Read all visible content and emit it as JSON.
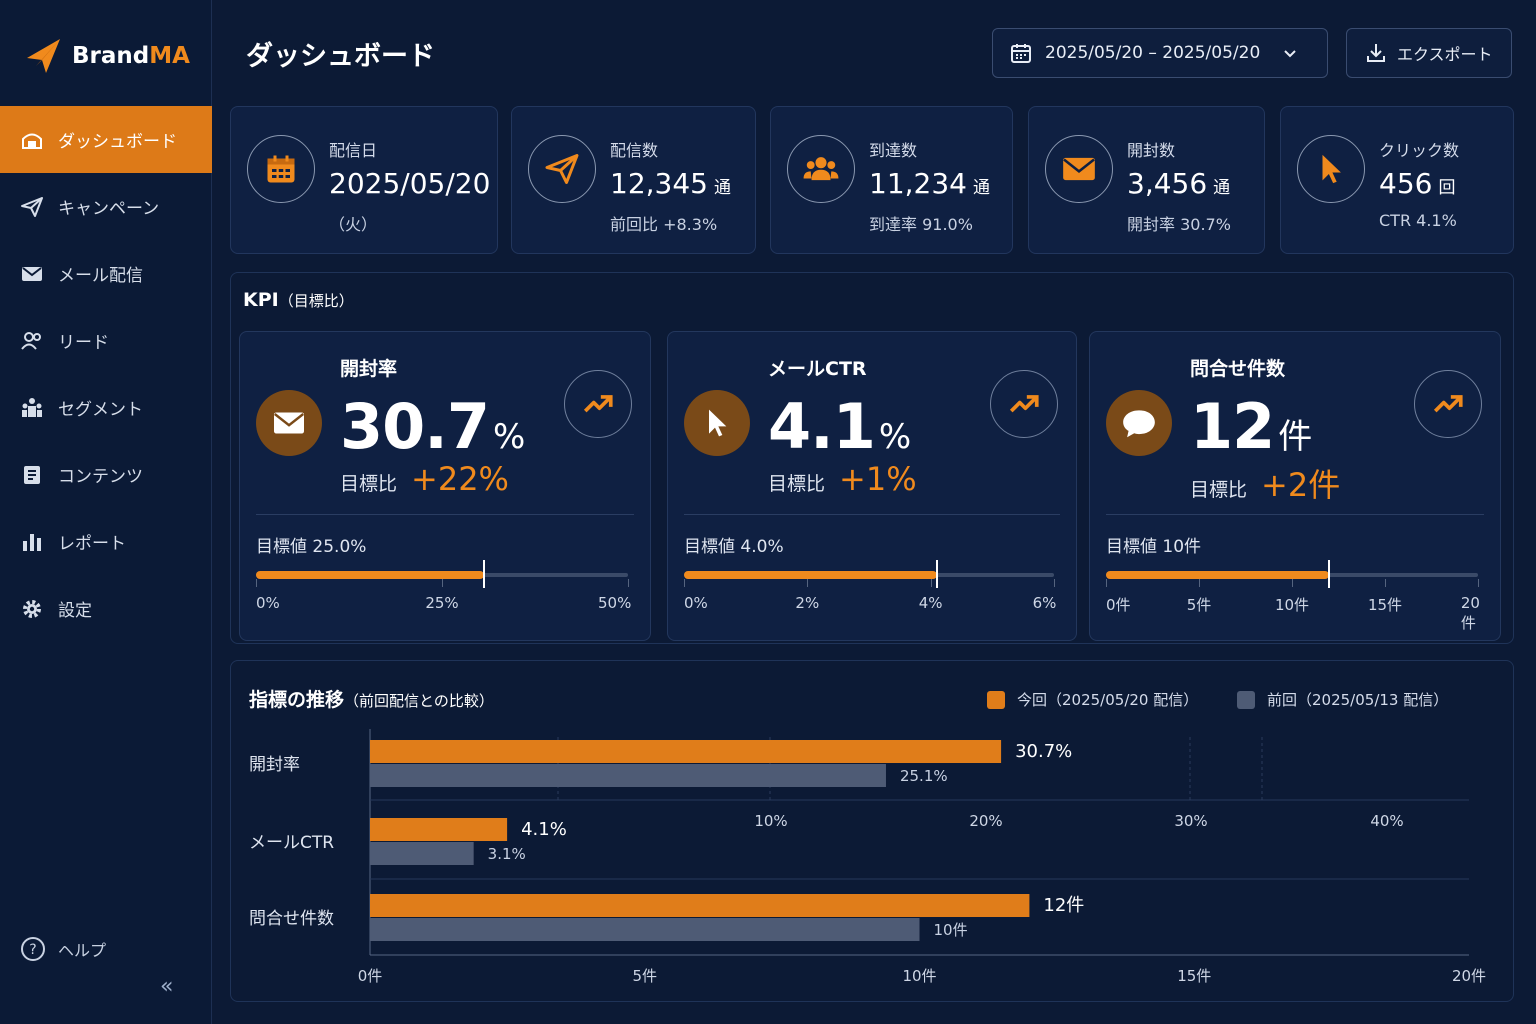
{
  "app": {
    "brand_a": "Brand",
    "brand_b": "MA"
  },
  "sidebar": {
    "items": [
      {
        "label": "ダッシュボード",
        "icon": "dashboard-icon"
      },
      {
        "label": "キャンペーン",
        "icon": "paper-plane-icon"
      },
      {
        "label": "メール配信",
        "icon": "mail-icon"
      },
      {
        "label": "リード",
        "icon": "users-icon"
      },
      {
        "label": "セグメント",
        "icon": "segment-icon"
      },
      {
        "label": "コンテンツ",
        "icon": "document-icon"
      },
      {
        "label": "レポート",
        "icon": "bar-chart-icon"
      },
      {
        "label": "設定",
        "icon": "gear-icon"
      }
    ],
    "help": "ヘルプ",
    "collapse": "«"
  },
  "header": {
    "title": "ダッシュボード",
    "date_range": "2025/05/20 – 2025/05/20",
    "export": "エクスポート"
  },
  "stats": [
    {
      "label": "配信日",
      "value": "2025/05/20",
      "unit": "",
      "sub": "（火）",
      "icon": "calendar-icon"
    },
    {
      "label": "配信数",
      "value": "12,345",
      "unit": "通",
      "sub": "前回比 +8.3%",
      "icon": "paper-plane-icon"
    },
    {
      "label": "到達数",
      "value": "11,234",
      "unit": "通",
      "sub": "到達率 91.0%",
      "icon": "users-icon"
    },
    {
      "label": "開封数",
      "value": "3,456",
      "unit": "通",
      "sub": "開封率 30.7%",
      "icon": "mail-icon"
    },
    {
      "label": "クリック数",
      "value": "456",
      "unit": "回",
      "sub": "CTR 4.1%",
      "icon": "cursor-icon"
    }
  ],
  "kpi": {
    "title": "KPI",
    "title_sub": "（目標比）",
    "cards": [
      {
        "name": "開封率",
        "value": "30.7",
        "unit": "%",
        "ratio_label": "目標比",
        "delta": "+22%",
        "target": "目標値  25.0%",
        "progress": 0.614,
        "target_frac": 0.5,
        "ticks": [
          "0%",
          "25%",
          "50%"
        ],
        "icon": "mail-icon"
      },
      {
        "name": "メールCTR",
        "value": "4.1",
        "unit": "%",
        "ratio_label": "目標比",
        "delta": "+1%",
        "target": "目標値  4.0%",
        "progress": 0.683,
        "target_frac": 0.667,
        "ticks": [
          "0%",
          "2%",
          "4%",
          "6%"
        ],
        "icon": "cursor-icon"
      },
      {
        "name": "問合せ件数",
        "value": "12",
        "unit": "件",
        "ratio_label": "目標比",
        "delta": "+2件",
        "target": "目標値  10件",
        "progress": 0.6,
        "target_frac": 0.5,
        "ticks": [
          "0件",
          "5件",
          "10件",
          "15件",
          "20件"
        ],
        "icon": "chat-icon"
      }
    ]
  },
  "colors": {
    "accent": "#f08a1d",
    "previous": "#4e5b75",
    "bg": "#0c1a35"
  },
  "chart_data": {
    "type": "bar",
    "title": "指標の推移",
    "subtitle": "（前回配信との比較）",
    "categories": [
      "開封率",
      "メールCTR",
      "問合せ件数"
    ],
    "series": [
      {
        "name": "今回（2025/05/20 配信）",
        "values": [
          30.7,
          4.1,
          12
        ],
        "labels": [
          "30.7%",
          "4.1%",
          "12件"
        ]
      },
      {
        "name": "前回（2025/05/13 配信）",
        "values": [
          25.1,
          3.1,
          10
        ],
        "labels": [
          "25.1%",
          "3.1%",
          "10件"
        ]
      }
    ],
    "x_axis_top": {
      "ticks": [
        "10%",
        "20%",
        "30%",
        "40%"
      ]
    },
    "x_axis_bottom": {
      "ticks": [
        "0件",
        "5件",
        "10件",
        "15件",
        "20件"
      ],
      "range": [
        0,
        20
      ]
    },
    "legend": "top-right"
  }
}
